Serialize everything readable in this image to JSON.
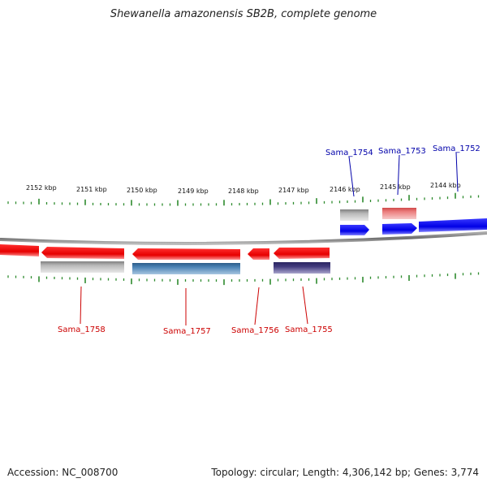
{
  "title": "Shewanella amazonensis SB2B, complete genome",
  "footer": {
    "accession": "Accession: NC_008700",
    "topology": "Topology: circular; Length: 4,306,142 bp; Genes: 3,774"
  },
  "colors": {
    "forward_strand": "#0000ee",
    "reverse_strand": "#ee0000",
    "forward_label": "#0000aa",
    "reverse_label": "#cc0000",
    "tick": "#2e8b2e",
    "backbone": "#808080",
    "feature_gray": "#b0b0b0",
    "feature_pink": "#e56b6b",
    "feature_steelblue": "#4a7fae",
    "feature_purple": "#433c7e"
  },
  "scale_labels": [
    "2152 kbp",
    "2151 kbp",
    "2150 kbp",
    "2149 kbp",
    "2148 kbp",
    "2147 kbp",
    "2146 kbp",
    "2145 kbp",
    "2144 kbp"
  ],
  "forward_genes": [
    "Sama_1754",
    "Sama_1753",
    "Sama_1752"
  ],
  "reverse_genes": [
    "Sama_1758",
    "Sama_1757",
    "Sama_1756",
    "Sama_1755"
  ]
}
